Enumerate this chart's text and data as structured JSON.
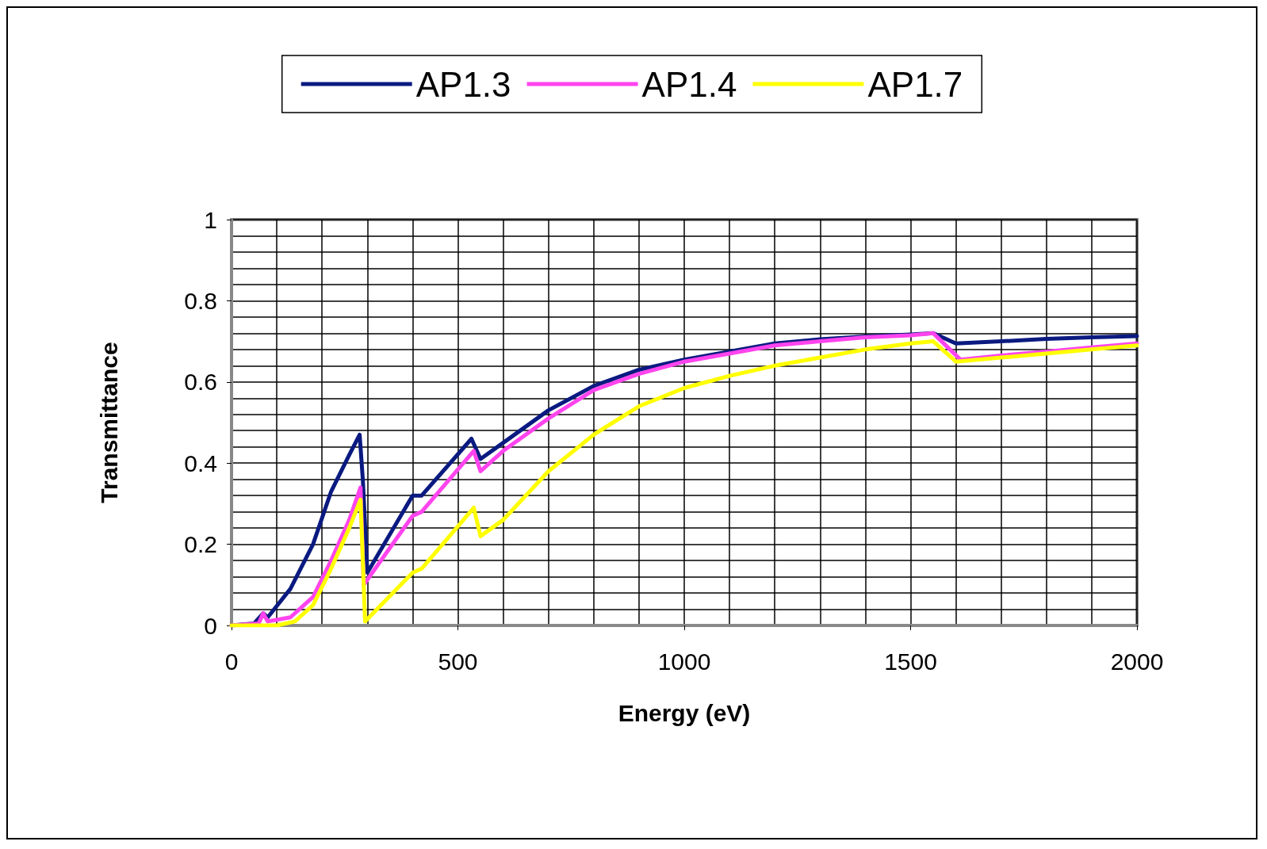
{
  "chart_data": {
    "type": "line",
    "xlabel": "Energy (eV)",
    "ylabel": "Transmittance",
    "xlim": [
      0,
      2000
    ],
    "xticks": [
      0,
      500,
      1000,
      1500,
      2000
    ],
    "ylim": [
      0,
      1
    ],
    "yticks": [
      0,
      0.2,
      0.4,
      0.6,
      0.8,
      1
    ],
    "grid": true,
    "legend": "top",
    "marker": "none",
    "line_style": "solid",
    "series": [
      {
        "name": "AP1.3",
        "color": "#0a1a80",
        "x": [
          0,
          50,
          70,
          80,
          130,
          180,
          220,
          260,
          283,
          290,
          300,
          400,
          420,
          530,
          550,
          600,
          700,
          800,
          900,
          1000,
          1100,
          1200,
          1300,
          1400,
          1500,
          1550,
          1600,
          1700,
          1800,
          1900,
          2000
        ],
        "values": [
          0,
          0.005,
          0.03,
          0.02,
          0.09,
          0.2,
          0.33,
          0.42,
          0.47,
          0.36,
          0.13,
          0.32,
          0.32,
          0.46,
          0.41,
          0.45,
          0.53,
          0.59,
          0.63,
          0.655,
          0.675,
          0.695,
          0.705,
          0.712,
          0.717,
          0.72,
          0.695,
          0.7,
          0.706,
          0.71,
          0.713
        ]
      },
      {
        "name": "AP1.4",
        "color": "#ff44ee",
        "x": [
          0,
          60,
          70,
          80,
          130,
          180,
          220,
          260,
          285,
          292,
          400,
          420,
          535,
          550,
          600,
          700,
          800,
          900,
          1000,
          1100,
          1200,
          1300,
          1400,
          1500,
          1550,
          1610,
          1700,
          1800,
          1900,
          2000
        ],
        "values": [
          0,
          0.005,
          0.03,
          0.01,
          0.02,
          0.07,
          0.16,
          0.26,
          0.34,
          0.1,
          0.27,
          0.28,
          0.43,
          0.38,
          0.43,
          0.51,
          0.58,
          0.62,
          0.65,
          0.67,
          0.69,
          0.7,
          0.71,
          0.715,
          0.72,
          0.655,
          0.665,
          0.675,
          0.685,
          0.695
        ]
      },
      {
        "name": "AP1.7",
        "color": "#ffff00",
        "x": [
          0,
          100,
          140,
          180,
          220,
          260,
          285,
          295,
          400,
          420,
          535,
          550,
          600,
          700,
          800,
          900,
          1000,
          1100,
          1200,
          1300,
          1400,
          1500,
          1550,
          1600,
          1700,
          1800,
          1900,
          2000
        ],
        "values": [
          0,
          0,
          0.01,
          0.05,
          0.14,
          0.24,
          0.31,
          0.01,
          0.13,
          0.14,
          0.29,
          0.22,
          0.26,
          0.38,
          0.47,
          0.54,
          0.585,
          0.615,
          0.64,
          0.66,
          0.68,
          0.695,
          0.7,
          0.65,
          0.66,
          0.67,
          0.68,
          0.69
        ]
      }
    ]
  }
}
